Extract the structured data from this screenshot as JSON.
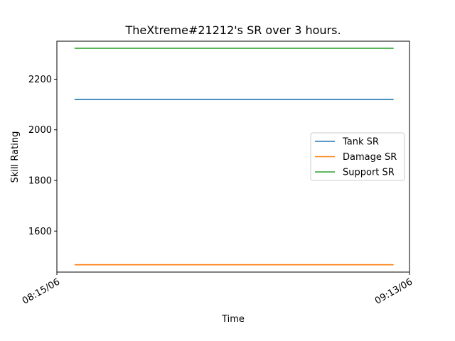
{
  "chart_data": {
    "type": "line",
    "title": "TheXtreme#21212's SR over 3 hours.",
    "xlabel": "Time",
    "ylabel": "Skill Rating",
    "x_ticks": [
      "08:15/06",
      "09:13/06"
    ],
    "y_ticks": [
      1600,
      1800,
      2000,
      2200
    ],
    "ylim": [
      1438,
      2350
    ],
    "x_domain": [
      0,
      1
    ],
    "x": [
      0.05,
      0.955
    ],
    "grid": false,
    "legend_position": "center-right",
    "series": [
      {
        "name": "Tank SR",
        "color": "#1f77b4",
        "values": [
          2120,
          2120
        ]
      },
      {
        "name": "Damage SR",
        "color": "#ff7f0e",
        "values": [
          1467,
          1467
        ]
      },
      {
        "name": "Support SR",
        "color": "#2ca02c",
        "values": [
          2322,
          2322
        ]
      }
    ]
  }
}
